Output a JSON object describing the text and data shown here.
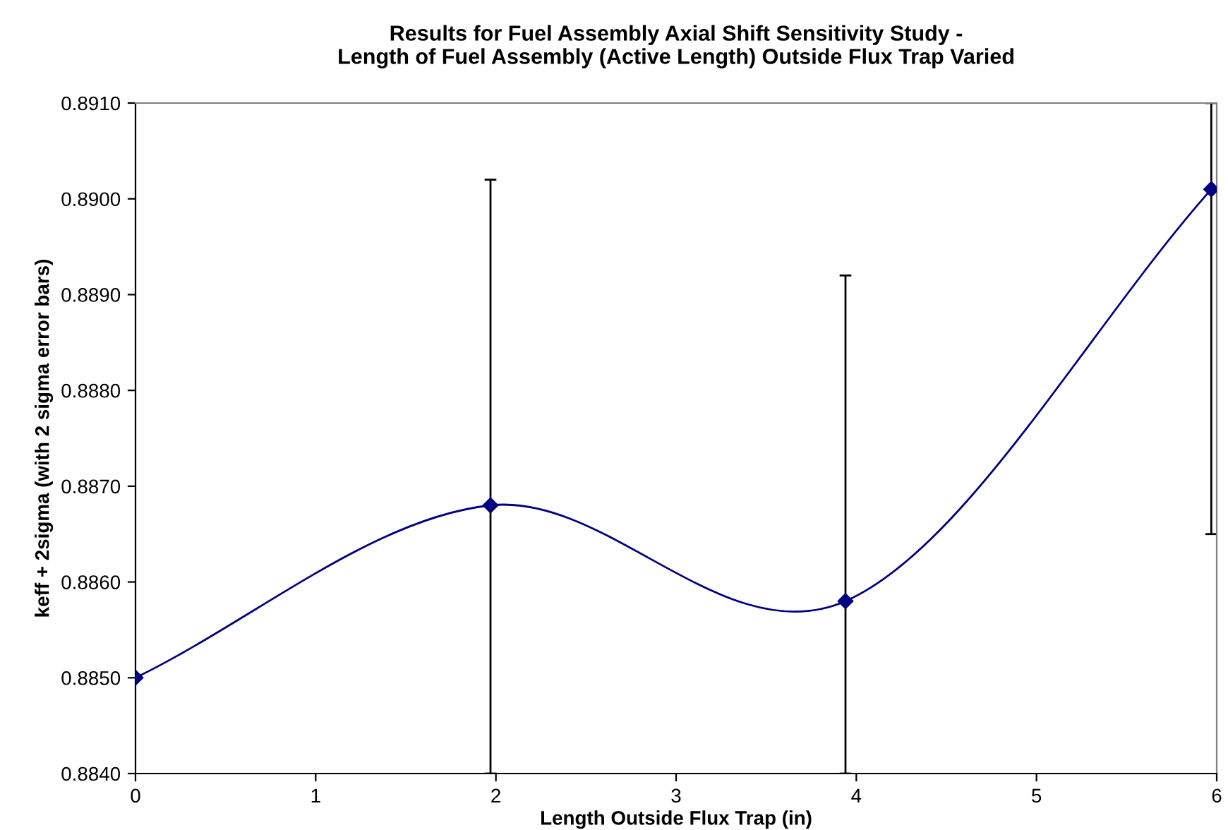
{
  "chart_data": {
    "type": "line",
    "title": "Results for Fuel Assembly Axial Shift Sensitivity Study -\nLength of Fuel Assembly (Active Length) Outside Flux Trap Varied",
    "xlabel": "Length Outside Flux Trap (in)",
    "ylabel": "keff + 2sigma (with 2 sigma error bars)",
    "x": [
      0,
      1.97,
      3.94,
      5.97
    ],
    "series": [
      {
        "color": "#000080",
        "values": [
          0.885,
          0.8868,
          0.8858,
          0.8901
        ],
        "errors": [
          null,
          [
            0.884,
            0.8902
          ],
          [
            0.884,
            0.8892
          ],
          [
            0.8865,
            0.891
          ]
        ]
      }
    ],
    "marker": "diamond",
    "line_style": "solid",
    "grid": false,
    "legend": false,
    "xlim": [
      0,
      6
    ],
    "xticks": [
      0,
      1,
      2,
      3,
      4,
      5,
      6
    ],
    "ylim": [
      0.884,
      0.891
    ],
    "yticks": [
      {
        "value": 0.884,
        "label": "0.8840"
      },
      {
        "value": 0.885,
        "label": "0.8850"
      },
      {
        "value": 0.886,
        "label": "0.8860"
      },
      {
        "value": 0.887,
        "label": "0.8870"
      },
      {
        "value": 0.888,
        "label": "0.8880"
      },
      {
        "value": 0.889,
        "label": "0.8890"
      },
      {
        "value": 0.89,
        "label": "0.8900"
      },
      {
        "value": 0.891,
        "label": "0.8910"
      }
    ]
  }
}
